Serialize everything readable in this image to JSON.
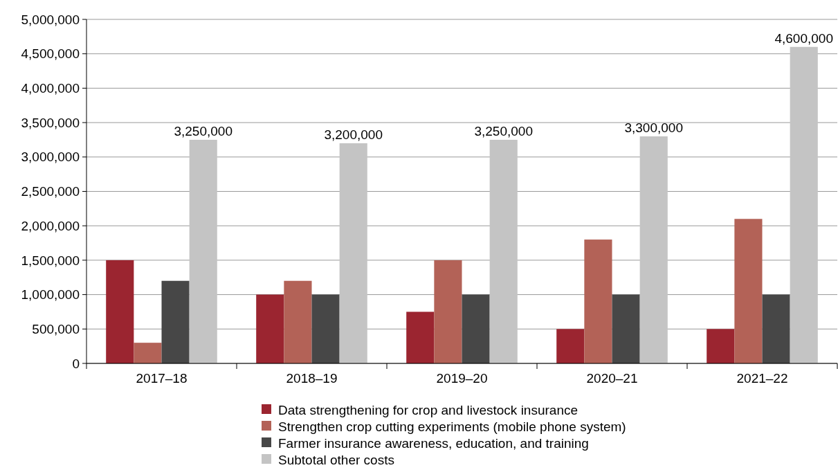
{
  "chart_data": {
    "type": "bar",
    "categories": [
      "2017–18",
      "2018–19",
      "2019–20",
      "2020–21",
      "2021–22"
    ],
    "series": [
      {
        "name": "Data strengthening for crop and livestock insurance",
        "color": "#9b2530",
        "values": [
          1500000,
          1000000,
          750000,
          500000,
          500000
        ]
      },
      {
        "name": "Strengthen crop cutting experiments (mobile phone system)",
        "color": "#b36257",
        "values": [
          300000,
          1200000,
          1500000,
          1800000,
          2100000
        ]
      },
      {
        "name": "Farmer insurance awareness, education, and training",
        "color": "#474747",
        "values": [
          1200000,
          1000000,
          1000000,
          1000000,
          1000000
        ]
      },
      {
        "name": "Subtotal other costs",
        "color": "#c4c4c4",
        "values": [
          3250000,
          3200000,
          3250000,
          3300000,
          4600000
        ],
        "value_labels": [
          "3,250,000",
          "3,200,000",
          "3,250,000",
          "3,300,000",
          "4,600,000"
        ]
      }
    ],
    "ylim": [
      0,
      5000000
    ],
    "yticks": [
      {
        "value": 0,
        "label": "0"
      },
      {
        "value": 500000,
        "label": "500,000"
      },
      {
        "value": 1000000,
        "label": "1,000,000"
      },
      {
        "value": 1500000,
        "label": "1,500,000"
      },
      {
        "value": 2000000,
        "label": "2,000,000"
      },
      {
        "value": 2500000,
        "label": "2,500,000"
      },
      {
        "value": 3000000,
        "label": "3,000,000"
      },
      {
        "value": 3500000,
        "label": "3,500,000"
      },
      {
        "value": 4000000,
        "label": "4,000,000"
      },
      {
        "value": 4500000,
        "label": "4,500,000"
      },
      {
        "value": 5000000,
        "label": "5,000,000"
      }
    ],
    "grid": "y",
    "legend": "bottom"
  }
}
